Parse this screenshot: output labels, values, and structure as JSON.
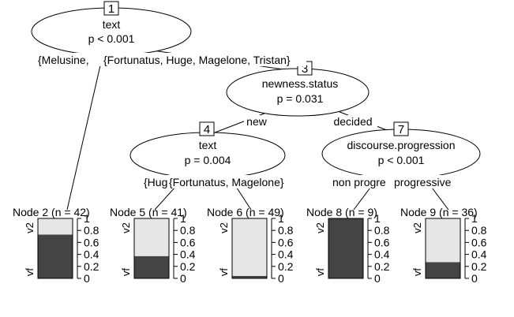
{
  "colors": {
    "background": "#ffffff",
    "bar_v2": "#e6e6e6",
    "bar_vf": "#444444",
    "line": "#000000"
  },
  "inner_nodes": [
    {
      "id": "1",
      "variable": "text",
      "pvalue": "p < 0.001"
    },
    {
      "id": "3",
      "variable": "newness.status",
      "pvalue": "p = 0.031"
    },
    {
      "id": "4",
      "variable": "text",
      "pvalue": "p = 0.004"
    },
    {
      "id": "7",
      "variable": "discourse.progression",
      "pvalue": "p < 0.001"
    }
  ],
  "edge_labels": {
    "n1_left": "{Melusine,",
    "n1_right": "{Fortunatus, Huge, Magelone, Tristan}",
    "n3_left": "new",
    "n3_right": "decided",
    "n4_left": "{Hug",
    "n4_right": "{Fortunatus, Magelone}",
    "n7_left": "non progre",
    "n7_right": "progressive"
  },
  "terminal_nodes": [
    {
      "id": "2",
      "title": "Node 2 (n = 42)",
      "vf_fraction": 0.73
    },
    {
      "id": "5",
      "title": "Node 5 (n = 41)",
      "vf_fraction": 0.37
    },
    {
      "id": "6",
      "title": "Node 6 (n = 49)",
      "vf_fraction": 0.04
    },
    {
      "id": "8",
      "title": "Node 8 (n = 9)",
      "vf_fraction": 1.0
    },
    {
      "id": "9",
      "title": "Node 9 (n = 36)",
      "vf_fraction": 0.27
    }
  ],
  "bar_axis": {
    "top_label": "v2",
    "bottom_label": "vf",
    "ticks": [
      "0",
      "0.2",
      "0.4",
      "0.6",
      "0.8",
      "1"
    ]
  }
}
